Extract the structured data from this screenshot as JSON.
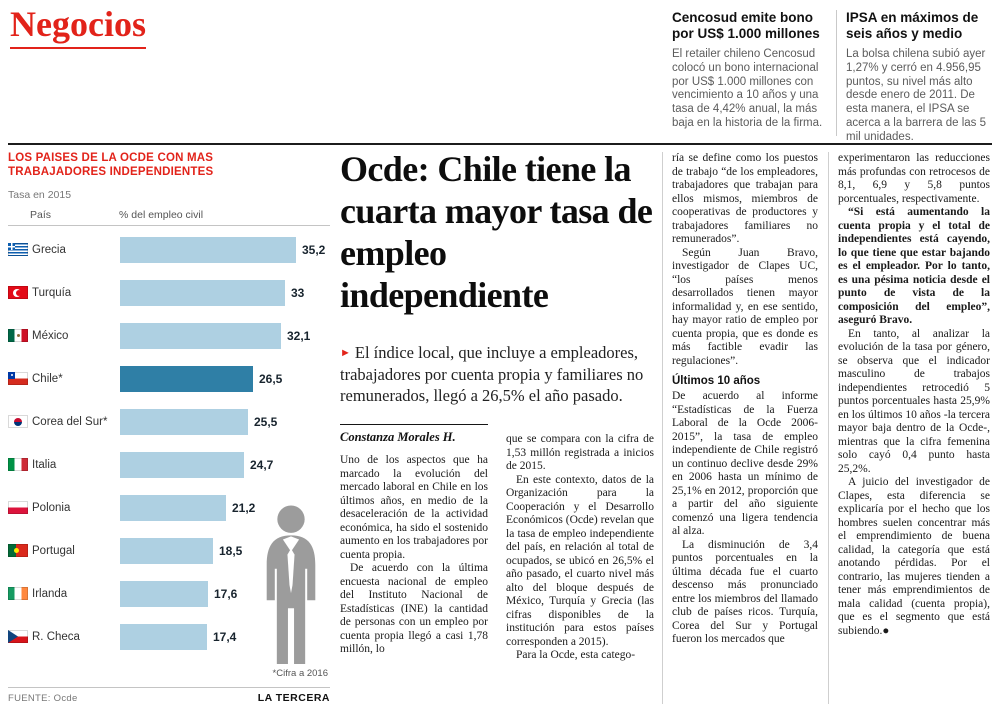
{
  "theme": {
    "accent_red": "#e2231a",
    "bar_blue": "#aed0e2",
    "bar_highlight": "#2f7fa6",
    "silhouette_gray": "#9c9c9c"
  },
  "masthead": {
    "section": "Negocios"
  },
  "briefs": [
    {
      "title": "Cencosud emite bono por US$ 1.000 millones",
      "body": "El retailer chileno Cencosud colocó un bono internacional por US$ 1.000 millones con vencimiento a 10 años y una tasa de 4,42% anual, la más baja en la historia de la firma."
    },
    {
      "title": "IPSA en máximos de seis años y medio",
      "body": "La bolsa chilena subió ayer 1,27% y cerró en 4.956,95 puntos, su nivel más alto desde enero de 2011. De esta manera, el IPSA se acerca a la barrera de las 5 mil unidades."
    }
  ],
  "chart": {
    "title_line1": "LOS PAISES DE LA OCDE CON MAS",
    "title_line2": "TRABAJADORES INDEPENDIENTES",
    "subtitle": "Tasa en 2015",
    "col_country": "País",
    "col_value": "% del empleo civil",
    "footnote": "*Cifra a 2016",
    "source": "FUENTE: Ocde",
    "credit": "LA TERCERA",
    "flag_codes": [
      "gr",
      "tr",
      "mx",
      "cl",
      "kr",
      "it",
      "pl",
      "pt",
      "ie",
      "cz"
    ],
    "flag_names": [
      "grecia",
      "turquia",
      "mexico",
      "chile",
      "corea-del-sur",
      "italia",
      "polonia",
      "portugal",
      "irlanda",
      "republica-checa"
    ]
  },
  "chart_data": {
    "type": "bar",
    "orientation": "horizontal",
    "title": "Los países de la Ocde con más trabajadores independientes",
    "subtitle": "Tasa en 2015",
    "xlabel": "% del empleo civil",
    "categories": [
      "Grecia",
      "Turquía",
      "México",
      "Chile*",
      "Corea del Sur*",
      "Italia",
      "Polonia",
      "Portugal",
      "Irlanda",
      "R. Checa"
    ],
    "values": [
      35.2,
      33,
      32.1,
      26.5,
      25.5,
      24.7,
      21.2,
      18.5,
      17.6,
      17.4
    ],
    "value_labels": [
      "35,2",
      "33",
      "32,1",
      "26,5",
      "25,5",
      "24,7",
      "21,2",
      "18,5",
      "17,6",
      "17,4"
    ],
    "highlighted_category": "Chile*",
    "xlim": [
      0,
      36
    ],
    "grid": false,
    "legend": false,
    "footnote": "*Cifra a 2016",
    "source": "Ocde"
  },
  "article": {
    "headline": "Ocde: Chile tiene la cuarta mayor tasa de empleo independiente",
    "deck_arrow": "►",
    "deck": "El índice local, que incluye a empleadores, trabajadores por cuenta propia y familiares no remunerados, llegó a 26,5% el año pasado.",
    "byline": "Constanza Morales H.",
    "col1": [
      "Uno de los aspectos que ha marcado la evolución del mercado laboral en Chile en los últimos años, en medio de la desaceleración de la actividad económica, ha sido el sostenido aumento en los trabajadores por cuenta propia.",
      "De acuerdo con la última encuesta nacional de empleo del Instituto Nacional de Estadísticas (INE) la cantidad de personas con un empleo por cuenta propia llegó a casi 1,78 millón, lo"
    ],
    "col2": [
      "que se compara con la cifra de 1,53 millón registrada a inicios de 2015.",
      "En este contexto, datos de la Organización para la Cooperación y el Desarrollo Económicos (Ocde) revelan que la tasa de empleo independiente del país, en relación al total de ocupados, se ubicó en 26,5% el año pasado, el cuarto nivel más alto del bloque después de México, Turquía y Grecia (las cifras disponibles de la institución para estos países corresponden a 2015).",
      "Para la Ocde, esta catego-"
    ],
    "col3a": [
      "ría se define como los puestos de trabajo “de los empleadores, trabajadores que trabajan para ellos mismos, miembros de cooperativas de productores y trabajadores familiares no remunerados”.",
      "Según Juan Bravo, investigador de Clapes UC, “los países menos desarrollados tienen mayor informalidad y, en ese sentido, hay mayor ratio de empleo por cuenta propia, que es donde es más factible evadir las regulaciones”."
    ],
    "subhead": "Últimos 10 años",
    "col3b": [
      "De acuerdo al informe “Estadísticas de la Fuerza Laboral de la Ocde 2006-2015”, la tasa de empleo independiente de Chile registró un continuo declive desde 29% en 2006 hasta un mínimo de 25,1% en 2012, proporción que a partir del año siguiente comenzó una ligera tendencia al alza.",
      "La disminución de 3,4 puntos porcentuales en la última década fue el cuarto descenso más pronunciado entre los miembros del llamado club de países ricos. Turquía, Corea del Sur y Portugal fueron los mercados que"
    ],
    "col4": [
      "experimentaron las reducciones más profundas con retrocesos de 8,1, 6,9 y 5,8 puntos porcentuales, respectivamente.",
      "“Si está aumentando la cuenta propia y el total de independientes está cayendo, lo que tiene que estar bajando es el empleador. Por lo tanto, es una pésima noticia desde el punto de vista de la composición del empleo”, aseguró Bravo.",
      "En tanto, al analizar la evolución de la tasa por género, se observa que el indicador masculino de trabajos independientes retrocedió 5 puntos porcentuales hasta 25,9% en los últimos 10 años -la tercera mayor baja dentro de la Ocde-, mientras que la cifra femenina solo cayó 0,4 punto hasta 25,2%.",
      "A juicio del investigador de Clapes, esta diferencia se explicaría por el hecho que los hombres suelen concentrar más el emprendimiento de buena calidad, la categoría que está anotando pérdidas. Por el contrario, las mujeres tienden a tener más emprendimientos de mala calidad (cuenta propia), que es el segmento que está subiendo.●"
    ]
  }
}
